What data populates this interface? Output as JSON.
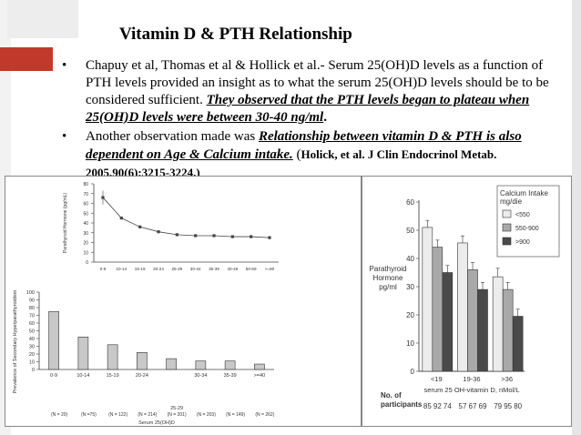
{
  "slide": {
    "title": "Vitamin D & PTH Relationship",
    "bullet1": {
      "text": "Chapuy et al, Thomas et al & Hollick et al.- Serum 25(OH)D levels as a function of PTH levels provided an insight as to what the serum 25(OH)D levels should be to be considered sufficient. ",
      "emph": "They observed that the PTH levels began to plateau when 25(OH)D levels were between 30-40 ng/ml",
      "end": "."
    },
    "bullet2": {
      "text": "Another observation made was ",
      "emph": "Relationship between vitamin D & PTH is also dependent on Age & Calcium intake.",
      "open": " (",
      "cite": "Holick, et al. J Clin Endocrinol Metab. 2005,90(6);3215-3224.)"
    },
    "colors": {
      "accent": "#c0392b",
      "bar": "#c8c8c8",
      "bar_light": "#ececec",
      "bar_mid": "#a9a9a9",
      "bar_dark": "#4a4a4a"
    }
  },
  "chart_data": [
    {
      "type": "line",
      "xlabel": "Serum 25(OHD (ng/mL)",
      "ylabel": "Parathyroid Hormone (pg/mL)",
      "categories": [
        "0-9",
        "10-14",
        "15-19",
        "20-24",
        "25-29",
        "30-34",
        "35-39",
        "40-49",
        "50-59",
        ">=60"
      ],
      "values": [
        66,
        45,
        36,
        31,
        28,
        27,
        27,
        26,
        26,
        25
      ],
      "yticks": [
        "0",
        "10",
        "20",
        "30",
        "40",
        "50",
        "60",
        "70",
        "80"
      ],
      "ylim": [
        0,
        80
      ]
    },
    {
      "type": "bar",
      "xlabel": "Serum 25(OH)D",
      "ylabel": "Prevalence of Secondary Hyperparathyroidism",
      "categories": [
        "0-9",
        "10-14",
        "15-19",
        "20-24",
        "25-29",
        "30-34",
        "35-39",
        ">=40"
      ],
      "values": [
        75,
        42,
        32,
        22,
        14,
        11,
        11,
        7
      ],
      "counts": [
        "(N = 20)",
        "(N =75)",
        "(N = 122)",
        "(N = 214)",
        "(N = 201)",
        "(N = 203)",
        "(N = 149)",
        "(N = 262)"
      ],
      "extra_label": "25-29",
      "yticks": [
        "0",
        "10",
        "20",
        "30",
        "40",
        "50",
        "60",
        "70",
        "80",
        "90",
        "100"
      ],
      "ylim": [
        0,
        100
      ]
    },
    {
      "type": "bar",
      "ylabel": [
        "Parathyroid",
        "Hormone",
        "pg/ml"
      ],
      "xlabel": "serum 25 OH-vitamin D, nMol/L",
      "categories": [
        "<19",
        "19-36",
        ">36"
      ],
      "series": [
        {
          "name": "<550",
          "values": [
            51,
            45.5,
            33.5
          ],
          "err": [
            2.5,
            2.5,
            3
          ]
        },
        {
          "name": "550-900",
          "values": [
            44,
            36,
            29
          ],
          "err": [
            2.5,
            2.5,
            2.5
          ]
        },
        {
          "name": ">900",
          "values": [
            35,
            29,
            19.5
          ],
          "err": [
            2.5,
            2.5,
            2.5
          ]
        }
      ],
      "legend_title": [
        "Calcium Intake",
        "mg/die"
      ],
      "participants_label": [
        "No. of",
        "participants"
      ],
      "participants": [
        [
          "85",
          "92",
          "74"
        ],
        [
          "57",
          "67",
          "69"
        ],
        [
          "79",
          "95",
          "80"
        ]
      ],
      "yticks": [
        "0",
        "10",
        "20",
        "30",
        "40",
        "50",
        "60"
      ],
      "ylim": [
        0,
        60
      ]
    }
  ]
}
